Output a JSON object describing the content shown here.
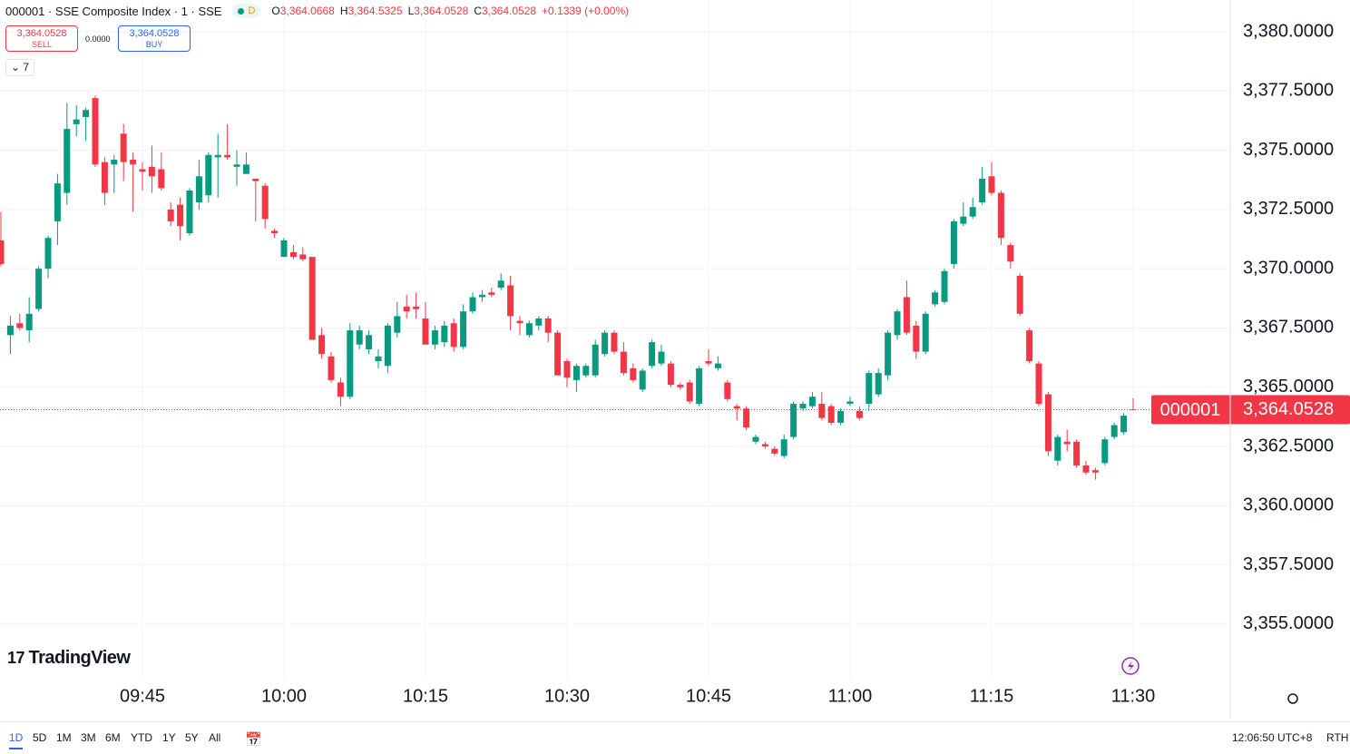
{
  "header": {
    "symbol": "000001 · SSE Composite Index · 1 · SSE",
    "status": "D",
    "ohlc": [
      {
        "key": "O",
        "value": "3,364.0668"
      },
      {
        "key": "H",
        "value": "3,364.5325"
      },
      {
        "key": "L",
        "value": "3,364.0528"
      },
      {
        "key": "C",
        "value": "3,364.0528"
      }
    ],
    "change": "+0.1339 (+0.00%)",
    "sell": {
      "price": "3,364.0528",
      "label": "SELL"
    },
    "spread": "0.0000",
    "buy": {
      "price": "3,364.0528",
      "label": "BUY"
    },
    "indicators": "7"
  },
  "logo": "TradingView",
  "toolbar": {
    "ranges": [
      "1D",
      "5D",
      "1M",
      "3M",
      "6M",
      "YTD",
      "1Y",
      "5Y",
      "All"
    ],
    "clock": "12:06:50 UTC+8",
    "session": "RTH"
  },
  "chart_data": {
    "type": "candlestick",
    "x": [
      "09:30",
      "09:31",
      "09:32",
      "09:33",
      "09:34",
      "09:35",
      "09:36",
      "09:37",
      "09:38",
      "09:39",
      "09:40",
      "09:41",
      "09:42",
      "09:43",
      "09:44",
      "09:45",
      "09:46",
      "09:47",
      "09:48",
      "09:49",
      "09:50",
      "09:51",
      "09:52",
      "09:53",
      "09:54",
      "09:55",
      "09:56",
      "09:57",
      "09:58",
      "09:59",
      "10:00",
      "10:01",
      "10:02",
      "10:03",
      "10:04",
      "10:05",
      "10:06",
      "10:07",
      "10:08",
      "10:09",
      "10:10",
      "10:11",
      "10:12",
      "10:13",
      "10:14",
      "10:15",
      "10:16",
      "10:17",
      "10:18",
      "10:19",
      "10:20",
      "10:21",
      "10:22",
      "10:23",
      "10:24",
      "10:25",
      "10:26",
      "10:27",
      "10:28",
      "10:29",
      "10:30",
      "10:31",
      "10:32",
      "10:33",
      "10:34",
      "10:35",
      "10:36",
      "10:37",
      "10:38",
      "10:39",
      "10:40",
      "10:41",
      "10:42",
      "10:43",
      "10:44",
      "10:45",
      "10:46",
      "10:47",
      "10:48",
      "10:49",
      "10:50",
      "10:51",
      "10:52",
      "10:53",
      "10:54",
      "10:55",
      "10:56",
      "10:57",
      "10:58",
      "10:59",
      "11:00",
      "11:01",
      "11:02",
      "11:03",
      "11:04",
      "11:05",
      "11:06",
      "11:07",
      "11:08",
      "11:09",
      "11:10",
      "11:11",
      "11:12",
      "11:13",
      "11:14",
      "11:15",
      "11:16",
      "11:17",
      "11:18",
      "11:19",
      "11:20",
      "11:21",
      "11:22",
      "11:23",
      "11:24",
      "11:25",
      "11:26",
      "11:27",
      "11:28",
      "11:29",
      "11:30"
    ],
    "open": [
      3371.2,
      3367.2,
      3367.7,
      3367.4,
      3368.3,
      3370.0,
      3372.0,
      3373.2,
      3376.1,
      3376.4,
      3377.2,
      3374.5,
      3374.4,
      3375.7,
      3374.6,
      3374.2,
      3374.3,
      3374.2,
      3372.5,
      3372.7,
      3371.5,
      3372.8,
      3373.1,
      3374.7,
      3374.8,
      3374.3,
      3374.0,
      3373.8,
      3373.5,
      3371.6,
      3370.5,
      3370.7,
      3370.6,
      3370.5,
      3367.2,
      3366.3,
      3365.2,
      3364.6,
      3366.8,
      3366.6,
      3366.1,
      3365.9,
      3367.3,
      3368.4,
      3368.4,
      3367.9,
      3366.8,
      3366.9,
      3367.7,
      3366.7,
      3368.2,
      3368.8,
      3369.0,
      3369.2,
      3369.3,
      3367.8,
      3367.2,
      3367.6,
      3367.9,
      3367.3,
      3366.1,
      3365.3,
      3365.5,
      3365.5,
      3366.4,
      3367.3,
      3366.5,
      3365.8,
      3364.9,
      3365.9,
      3366.0,
      3366.0,
      3365.1,
      3365.2,
      3364.3,
      3366.1,
      3365.8,
      3365.2,
      3364.2,
      3364.1,
      3362.7,
      3362.6,
      3362.4,
      3362.1,
      3362.9,
      3364.1,
      3364.2,
      3364.3,
      3364.2,
      3363.5,
      3364.3,
      3364.0,
      3364.3,
      3364.7,
      3365.5,
      3367.2,
      3368.8,
      3367.6,
      3366.5,
      3368.5,
      3368.6,
      3370.2,
      3371.9,
      3372.2,
      3372.8,
      3373.9,
      3373.2,
      3371.0,
      3369.7,
      3367.4,
      3366.0,
      3364.7,
      3361.9,
      3362.7,
      3362.7,
      3361.7,
      3361.5,
      3361.8,
      3362.9,
      3363.1,
      3364.0668
    ],
    "high": [
      3372.4,
      3368.0,
      3368.1,
      3368.8,
      3370.1,
      3371.4,
      3374.0,
      3377.0,
      3376.9,
      3376.8,
      3377.3,
      3374.7,
      3374.8,
      3376.1,
      3374.9,
      3374.5,
      3375.2,
      3374.9,
      3372.8,
      3373.0,
      3373.4,
      3374.6,
      3374.9,
      3375.7,
      3376.1,
      3375.0,
      3374.9,
      3373.8,
      3373.6,
      3371.7,
      3371.3,
      3371.0,
      3370.9,
      3370.5,
      3367.5,
      3366.5,
      3365.4,
      3367.7,
      3367.6,
      3367.4,
      3366.6,
      3367.7,
      3368.6,
      3368.9,
      3369.0,
      3368.6,
      3367.6,
      3367.8,
      3367.9,
      3368.5,
      3369.0,
      3369.1,
      3369.2,
      3369.8,
      3369.7,
      3368.0,
      3367.8,
      3368.0,
      3368.0,
      3367.4,
      3366.2,
      3366.0,
      3366.0,
      3367.0,
      3367.4,
      3367.4,
      3366.9,
      3366.0,
      3365.8,
      3367.0,
      3366.8,
      3366.1,
      3365.2,
      3365.3,
      3365.9,
      3366.6,
      3366.3,
      3365.3,
      3364.3,
      3364.2,
      3363.0,
      3362.7,
      3362.5,
      3363.0,
      3364.4,
      3364.4,
      3364.8,
      3364.8,
      3364.3,
      3364.1,
      3364.6,
      3364.2,
      3365.7,
      3365.8,
      3367.4,
      3368.3,
      3369.5,
      3367.8,
      3368.2,
      3369.1,
      3370.0,
      3372.1,
      3372.8,
      3373.0,
      3374.3,
      3374.5,
      3373.3,
      3371.1,
      3369.8,
      3367.5,
      3366.1,
      3364.8,
      3363.0,
      3363.2,
      3362.8,
      3361.9,
      3361.6,
      3362.9,
      3363.5,
      3363.9,
      3364.5325
    ],
    "low": [
      3370.1,
      3366.4,
      3367.4,
      3366.9,
      3368.2,
      3369.6,
      3371.0,
      3372.7,
      3375.6,
      3375.4,
      3374.3,
      3372.7,
      3373.2,
      3373.7,
      3372.4,
      3373.3,
      3373.2,
      3373.3,
      3371.8,
      3371.2,
      3371.4,
      3372.5,
      3372.8,
      3373.0,
      3374.6,
      3373.5,
      3374.0,
      3372.0,
      3371.7,
      3371.3,
      3370.5,
      3370.4,
      3370.3,
      3367.0,
      3366.2,
      3365.2,
      3364.2,
      3364.5,
      3366.6,
      3366.4,
      3365.8,
      3365.6,
      3367.1,
      3367.9,
      3367.9,
      3366.8,
      3366.6,
      3366.7,
      3366.5,
      3366.6,
      3368.1,
      3368.6,
      3368.8,
      3369.1,
      3367.4,
      3367.2,
      3367.1,
      3367.4,
      3366.9,
      3365.5,
      3365.0,
      3364.8,
      3365.4,
      3365.4,
      3366.3,
      3366.4,
      3365.5,
      3365.2,
      3364.8,
      3365.8,
      3365.9,
      3365.0,
      3364.9,
      3364.3,
      3364.2,
      3365.9,
      3365.7,
      3364.4,
      3363.6,
      3363.2,
      3362.6,
      3362.4,
      3362.1,
      3362.0,
      3362.8,
      3364.0,
      3364.1,
      3363.6,
      3363.4,
      3363.4,
      3364.2,
      3363.6,
      3364.0,
      3364.6,
      3365.3,
      3367.0,
      3367.2,
      3366.2,
      3366.4,
      3368.4,
      3368.5,
      3370.0,
      3371.8,
      3372.1,
      3372.7,
      3373.1,
      3371.0,
      3370.0,
      3368.0,
      3366.0,
      3364.2,
      3362.1,
      3361.7,
      3362.3,
      3361.6,
      3361.3,
      3361.1,
      3361.7,
      3362.8,
      3363.0,
      3364.0528
    ],
    "close": [
      3370.2,
      3367.6,
      3367.5,
      3368.1,
      3370.0,
      3371.3,
      3373.6,
      3375.9,
      3376.3,
      3376.7,
      3374.4,
      3373.2,
      3374.6,
      3374.5,
      3374.4,
      3374.1,
      3373.9,
      3373.4,
      3372.0,
      3371.8,
      3373.3,
      3373.9,
      3374.8,
      3374.8,
      3374.7,
      3374.4,
      3374.4,
      3373.7,
      3372.1,
      3371.5,
      3371.2,
      3370.5,
      3370.4,
      3367.0,
      3366.4,
      3365.3,
      3364.6,
      3367.4,
      3367.4,
      3367.2,
      3366.3,
      3367.6,
      3368.0,
      3368.2,
      3368.3,
      3366.8,
      3367.4,
      3367.6,
      3366.7,
      3368.2,
      3368.8,
      3368.9,
      3368.9,
      3369.5,
      3368.0,
      3367.7,
      3367.7,
      3367.9,
      3367.3,
      3365.5,
      3365.4,
      3365.9,
      3365.9,
      3366.8,
      3367.3,
      3366.5,
      3365.6,
      3365.3,
      3365.7,
      3366.9,
      3366.5,
      3365.1,
      3365.0,
      3364.4,
      3365.8,
      3366.0,
      3366.0,
      3364.5,
      3364.1,
      3363.3,
      3362.9,
      3362.5,
      3362.2,
      3362.8,
      3364.3,
      3364.3,
      3364.6,
      3363.7,
      3363.5,
      3364.0,
      3364.4,
      3363.7,
      3365.6,
      3365.6,
      3367.3,
      3368.2,
      3367.3,
      3366.5,
      3368.1,
      3369.0,
      3369.9,
      3372.0,
      3372.2,
      3372.6,
      3373.8,
      3373.2,
      3371.3,
      3370.3,
      3368.1,
      3366.1,
      3364.3,
      3362.3,
      3362.9,
      3362.6,
      3361.7,
      3361.4,
      3361.4,
      3362.8,
      3363.4,
      3363.8,
      3364.0528
    ],
    "up_color": "#089981",
    "down_color": "#f23645",
    "ylim": [
      3352.7,
      3381.34
    ],
    "yticks": [
      {
        "value": 3355,
        "label": "3,355.0000"
      },
      {
        "value": 3357.5,
        "label": "3,357.5000"
      },
      {
        "value": 3360,
        "label": "3,360.0000"
      },
      {
        "value": 3362.5,
        "label": "3,362.5000"
      },
      {
        "value": 3365,
        "label": "3,365.0000"
      },
      {
        "value": 3367.5,
        "label": "3,367.5000"
      },
      {
        "value": 3370,
        "label": "3,370.0000"
      },
      {
        "value": 3372.5,
        "label": "3,372.5000"
      },
      {
        "value": 3375,
        "label": "3,375.0000"
      },
      {
        "value": 3377.5,
        "label": "3,377.5000"
      },
      {
        "value": 3380,
        "label": "3,380.0000"
      }
    ],
    "xticks": [
      "09:45",
      "10:00",
      "10:15",
      "10:30",
      "10:45",
      "11:00",
      "11:15",
      "11:30"
    ],
    "grid": true,
    "last_price": {
      "value": 3364.0528,
      "label": "3,364.0528",
      "symbol": "000001"
    }
  }
}
